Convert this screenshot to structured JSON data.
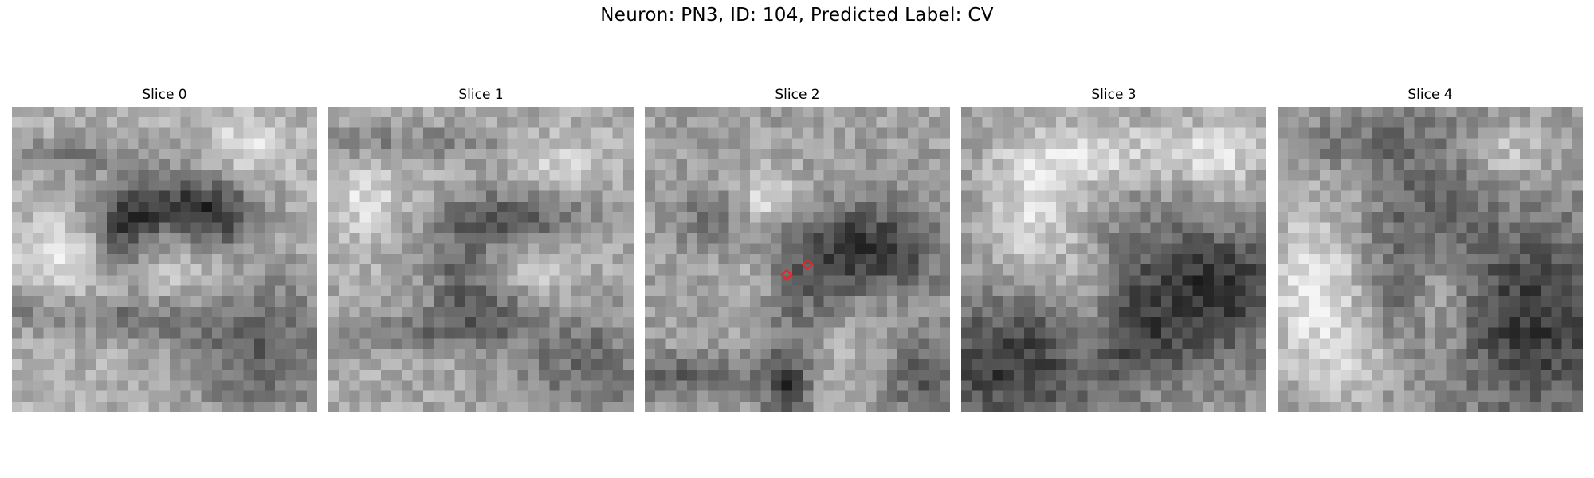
{
  "figure": {
    "title": "Neuron: PN3, ID: 104, Predicted Label: CV",
    "marker_color": "#e5252a"
  },
  "panels": [
    {
      "title": "Slice 0",
      "markers": []
    },
    {
      "title": "Slice 1",
      "markers": []
    },
    {
      "title": "Slice 2",
      "markers": [
        "diamond-marker",
        "diamond-marker"
      ]
    },
    {
      "title": "Slice 3",
      "markers": []
    },
    {
      "title": "Slice 4",
      "markers": []
    }
  ]
}
